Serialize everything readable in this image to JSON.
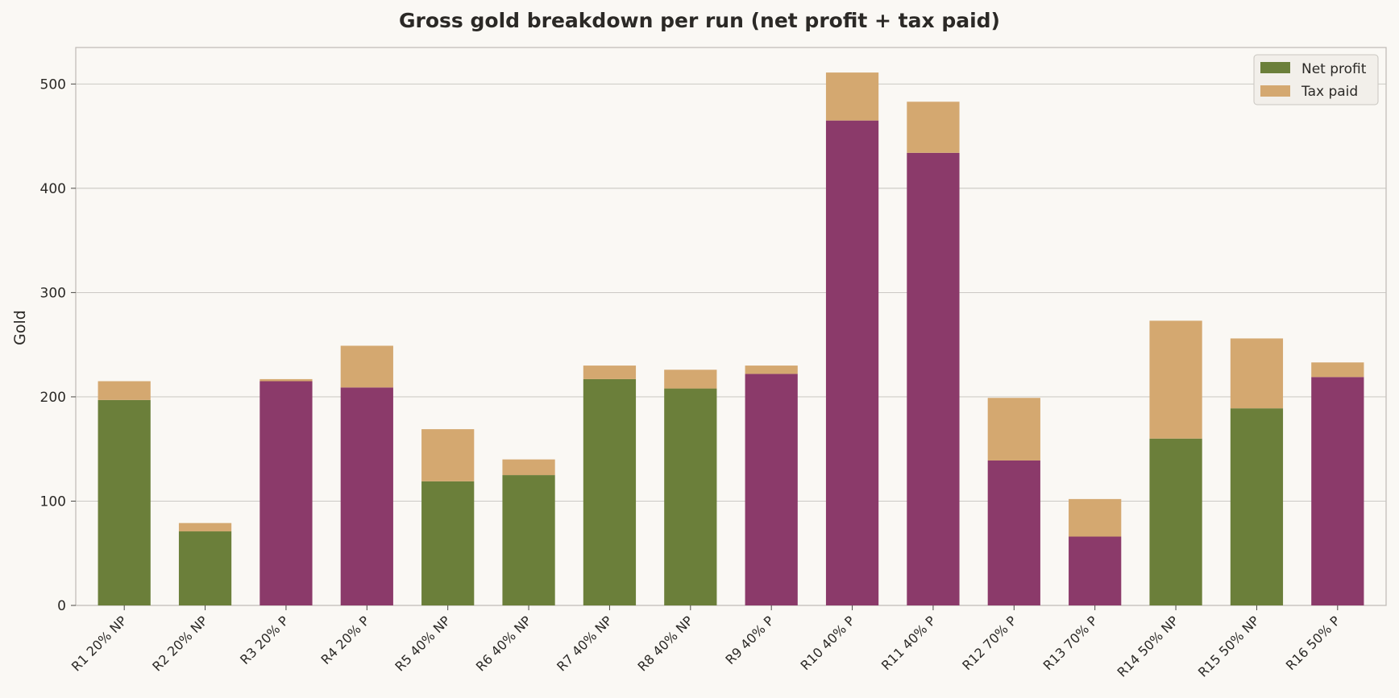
{
  "chart_data": {
    "type": "bar",
    "stacked": true,
    "title": "Gross gold breakdown per run (net profit + tax paid)",
    "xlabel": "",
    "ylabel": "Gold",
    "ylim": [
      0,
      535
    ],
    "yticks": [
      0,
      100,
      200,
      300,
      400,
      500
    ],
    "grid": "horizontal",
    "legend_position": "top-right",
    "categories": [
      "R1 20% NP",
      "R2 20% NP",
      "R3 20% P",
      "R4 20% P",
      "R5 40% NP",
      "R6 40% NP",
      "R7 40% NP",
      "R8 40% NP",
      "R9 40% P",
      "R10 40% P",
      "R11 40% P",
      "R12 70% P",
      "R13 70% P",
      "R14 50% NP",
      "R15 50% NP",
      "R16 50% P"
    ],
    "series": [
      {
        "name": "Net profit",
        "values": [
          197,
          71,
          215,
          209,
          119,
          125,
          217,
          208,
          222,
          465,
          434,
          139,
          66,
          160,
          189,
          219
        ]
      },
      {
        "name": "Tax paid",
        "values": [
          18,
          8,
          2,
          40,
          50,
          15,
          13,
          18,
          8,
          46,
          49,
          60,
          36,
          113,
          67,
          14
        ]
      }
    ],
    "colors": {
      "net_profit_np": "#6b7f3a",
      "net_profit_p": "#8b3a6a",
      "tax_paid": "#d4a870",
      "grid": "#c4c2bd",
      "axes": "#bdbab4",
      "background": "#faf8f4"
    }
  }
}
